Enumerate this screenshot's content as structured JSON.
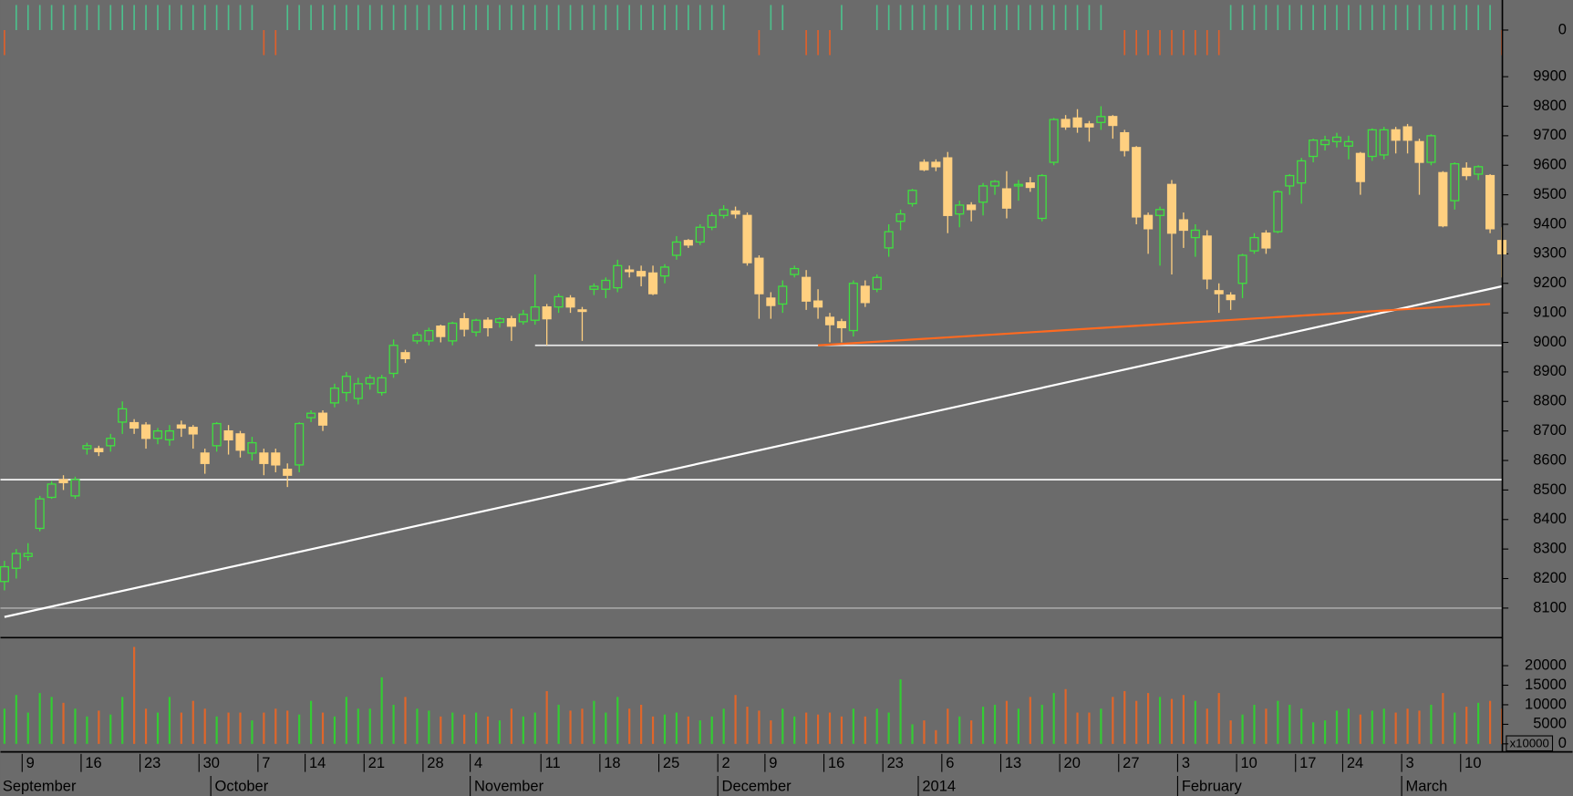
{
  "chart_data": {
    "type": "candlestick",
    "up_color": "#3fe03f",
    "down_color": "#ffd080",
    "background": "#6b6b6b",
    "ylim": [
      8000,
      9990
    ],
    "yticks": [
      8100,
      8200,
      8300,
      8400,
      8500,
      8600,
      8700,
      8800,
      8900,
      9000,
      9100,
      9200,
      9300,
      9400,
      9500,
      9600,
      9700,
      9800,
      9900
    ],
    "categories": [
      null,
      null,
      "9",
      null,
      null,
      null,
      null,
      "16",
      null,
      null,
      null,
      null,
      "23",
      null,
      null,
      null,
      null,
      "30",
      null,
      null,
      null,
      null,
      "7",
      null,
      null,
      null,
      "14",
      null,
      null,
      null,
      null,
      "21",
      null,
      null,
      null,
      null,
      "28",
      null,
      null,
      null,
      "4",
      null,
      null,
      null,
      null,
      null,
      "11",
      null,
      null,
      null,
      null,
      "18",
      null,
      null,
      null,
      null,
      "25",
      null,
      null,
      null,
      null,
      "2",
      null,
      null,
      null,
      "9",
      null,
      null,
      null,
      null,
      "16",
      null,
      null,
      null,
      null,
      "23",
      null,
      null,
      null,
      null,
      "6",
      null,
      null,
      null,
      null,
      "13",
      null,
      null,
      null,
      null,
      "20",
      null,
      null,
      null,
      null,
      "27",
      null,
      null,
      null,
      null,
      "3",
      null,
      null,
      null,
      null,
      "10",
      null,
      null,
      null,
      null,
      "17",
      null,
      null,
      null,
      "24",
      null,
      null,
      null,
      null,
      "3",
      null,
      null,
      null,
      null,
      "10",
      null,
      null,
      null
    ],
    "months": [
      "September",
      null,
      null,
      null,
      null,
      null,
      null,
      null,
      null,
      null,
      null,
      null,
      null,
      null,
      null,
      null,
      null,
      null,
      "October",
      null,
      null,
      null,
      null,
      null,
      null,
      null,
      null,
      null,
      null,
      null,
      null,
      null,
      null,
      null,
      null,
      null,
      null,
      null,
      null,
      null,
      "November",
      null,
      null,
      null,
      null,
      null,
      null,
      null,
      null,
      null,
      null,
      null,
      null,
      null,
      null,
      null,
      null,
      null,
      null,
      null,
      null,
      "December",
      null,
      null,
      null,
      null,
      null,
      null,
      null,
      null,
      null,
      null,
      null,
      null,
      null,
      null,
      null,
      null,
      "2014",
      null,
      null,
      null,
      null,
      null,
      null,
      null,
      null,
      null,
      null,
      null,
      null,
      null,
      null,
      null,
      null,
      null,
      null,
      null,
      null,
      null,
      "February",
      null,
      null,
      null,
      null,
      null,
      null,
      null,
      null,
      null,
      null,
      null,
      null,
      null,
      null,
      null,
      null,
      null,
      null,
      "March",
      null,
      null,
      null,
      null,
      null,
      null,
      null,
      null
    ],
    "ohlc": [
      [
        8190,
        8260,
        8160,
        8240
      ],
      [
        8235,
        8300,
        8200,
        8285
      ],
      [
        8275,
        8320,
        8260,
        8285
      ],
      [
        8370,
        8480,
        8360,
        8470
      ],
      [
        8475,
        8530,
        8470,
        8520
      ],
      [
        8535,
        8550,
        8500,
        8525
      ],
      [
        8480,
        8545,
        8470,
        8535
      ],
      [
        8640,
        8660,
        8620,
        8650
      ],
      [
        8640,
        8650,
        8615,
        8630
      ],
      [
        8650,
        8690,
        8630,
        8675
      ],
      [
        8730,
        8800,
        8690,
        8775
      ],
      [
        8728,
        8740,
        8690,
        8710
      ],
      [
        8720,
        8730,
        8640,
        8675
      ],
      [
        8675,
        8710,
        8655,
        8700
      ],
      [
        8670,
        8720,
        8650,
        8700
      ],
      [
        8720,
        8735,
        8680,
        8710
      ],
      [
        8712,
        8720,
        8640,
        8690
      ],
      [
        8625,
        8640,
        8555,
        8590
      ],
      [
        8650,
        8730,
        8630,
        8725
      ],
      [
        8700,
        8720,
        8620,
        8670
      ],
      [
        8690,
        8700,
        8610,
        8635
      ],
      [
        8625,
        8680,
        8600,
        8660
      ],
      [
        8625,
        8640,
        8550,
        8590
      ],
      [
        8625,
        8640,
        8560,
        8585
      ],
      [
        8570,
        8590,
        8510,
        8550
      ],
      [
        8585,
        8730,
        8560,
        8725
      ],
      [
        8745,
        8770,
        8730,
        8760
      ],
      [
        8760,
        8770,
        8700,
        8720
      ],
      [
        8795,
        8860,
        8780,
        8845
      ],
      [
        8830,
        8900,
        8800,
        8885
      ],
      [
        8810,
        8880,
        8790,
        8860
      ],
      [
        8860,
        8890,
        8840,
        8880
      ],
      [
        8830,
        8890,
        8820,
        8880
      ],
      [
        8895,
        9010,
        8880,
        8990
      ],
      [
        8965,
        8975,
        8930,
        8945
      ],
      [
        9005,
        9035,
        8995,
        9025
      ],
      [
        9005,
        9050,
        8990,
        9040
      ],
      [
        9055,
        9060,
        9000,
        9020
      ],
      [
        9005,
        9070,
        8990,
        9065
      ],
      [
        9080,
        9100,
        9020,
        9045
      ],
      [
        9035,
        9080,
        9020,
        9075
      ],
      [
        9075,
        9085,
        9020,
        9050
      ],
      [
        9068,
        9085,
        9050,
        9080
      ],
      [
        9080,
        9090,
        9005,
        9055
      ],
      [
        9070,
        9110,
        9060,
        9095
      ],
      [
        9075,
        9230,
        9060,
        9120
      ],
      [
        9120,
        9130,
        8990,
        9080
      ],
      [
        9120,
        9165,
        9100,
        9155
      ],
      [
        9150,
        9160,
        9100,
        9120
      ],
      [
        9110,
        9120,
        9005,
        9105
      ],
      [
        9180,
        9200,
        9160,
        9190
      ],
      [
        9180,
        9220,
        9150,
        9210
      ],
      [
        9185,
        9280,
        9170,
        9260
      ],
      [
        9245,
        9260,
        9220,
        9240
      ],
      [
        9240,
        9260,
        9190,
        9225
      ],
      [
        9235,
        9260,
        9160,
        9165
      ],
      [
        9225,
        9265,
        9200,
        9255
      ],
      [
        9295,
        9360,
        9280,
        9340
      ],
      [
        9345,
        9350,
        9320,
        9330
      ],
      [
        9340,
        9400,
        9330,
        9390
      ],
      [
        9390,
        9440,
        9380,
        9430
      ],
      [
        9430,
        9465,
        9420,
        9450
      ],
      [
        9445,
        9460,
        9420,
        9435
      ],
      [
        9430,
        9440,
        9260,
        9270
      ],
      [
        9285,
        9295,
        9080,
        9165
      ],
      [
        9150,
        9170,
        9080,
        9125
      ],
      [
        9130,
        9210,
        9100,
        9190
      ],
      [
        9230,
        9260,
        9220,
        9250
      ],
      [
        9220,
        9245,
        9110,
        9140
      ],
      [
        9140,
        9180,
        9080,
        9120
      ],
      [
        9085,
        9100,
        9000,
        9060
      ],
      [
        9070,
        9080,
        9000,
        9050
      ],
      [
        9040,
        9210,
        9020,
        9200
      ],
      [
        9190,
        9210,
        9120,
        9135
      ],
      [
        9180,
        9230,
        9170,
        9220
      ],
      [
        9320,
        9400,
        9290,
        9375
      ],
      [
        9410,
        9450,
        9380,
        9435
      ],
      [
        9470,
        9520,
        9460,
        9515
      ],
      [
        9610,
        9620,
        9580,
        9585
      ],
      [
        9610,
        9620,
        9580,
        9595
      ],
      [
        9625,
        9645,
        9370,
        9430
      ],
      [
        9435,
        9480,
        9390,
        9465
      ],
      [
        9465,
        9475,
        9410,
        9450
      ],
      [
        9475,
        9540,
        9430,
        9530
      ],
      [
        9530,
        9550,
        9500,
        9545
      ],
      [
        9520,
        9580,
        9420,
        9455
      ],
      [
        9530,
        9550,
        9480,
        9535
      ],
      [
        9540,
        9560,
        9510,
        9525
      ],
      [
        9420,
        9570,
        9410,
        9565
      ],
      [
        9610,
        9760,
        9600,
        9755
      ],
      [
        9755,
        9770,
        9720,
        9730
      ],
      [
        9760,
        9790,
        9710,
        9730
      ],
      [
        9740,
        9750,
        9680,
        9730
      ],
      [
        9745,
        9800,
        9720,
        9765
      ],
      [
        9765,
        9770,
        9690,
        9735
      ],
      [
        9710,
        9720,
        9630,
        9650
      ],
      [
        9660,
        9665,
        9400,
        9425
      ],
      [
        9430,
        9440,
        9300,
        9385
      ],
      [
        9430,
        9460,
        9260,
        9450
      ],
      [
        9535,
        9550,
        9230,
        9370
      ],
      [
        9415,
        9440,
        9320,
        9380
      ],
      [
        9355,
        9400,
        9290,
        9380
      ],
      [
        9360,
        9380,
        9180,
        9215
      ],
      [
        9175,
        9200,
        9100,
        9165
      ],
      [
        9160,
        9170,
        9110,
        9145
      ],
      [
        9200,
        9300,
        9150,
        9295
      ],
      [
        9310,
        9370,
        9300,
        9355
      ],
      [
        9370,
        9380,
        9300,
        9320
      ],
      [
        9375,
        9515,
        9370,
        9510
      ],
      [
        9530,
        9570,
        9500,
        9565
      ],
      [
        9540,
        9625,
        9470,
        9615
      ],
      [
        9630,
        9690,
        9610,
        9685
      ],
      [
        9670,
        9700,
        9650,
        9685
      ],
      [
        9680,
        9710,
        9660,
        9695
      ],
      [
        9665,
        9700,
        9620,
        9680
      ],
      [
        9640,
        9645,
        9500,
        9545
      ],
      [
        9630,
        9725,
        9615,
        9720
      ],
      [
        9635,
        9730,
        9620,
        9720
      ],
      [
        9720,
        9730,
        9640,
        9685
      ],
      [
        9730,
        9740,
        9640,
        9685
      ],
      [
        9680,
        9690,
        9500,
        9610
      ],
      [
        9610,
        9705,
        9600,
        9700
      ],
      [
        9575,
        9580,
        9390,
        9395
      ],
      [
        9480,
        9610,
        9450,
        9605
      ],
      [
        9590,
        9610,
        9550,
        9565
      ],
      [
        9570,
        9600,
        9550,
        9595
      ],
      [
        9565,
        9570,
        9370,
        9385
      ],
      [
        9345,
        9390,
        9220,
        9300
      ]
    ],
    "hlines": [
      {
        "value": 8535,
        "color": "#ffffff"
      },
      {
        "value": 8990,
        "from": 45,
        "color": "#e8e8e8"
      },
      {
        "value": 8100,
        "color": "#a8a8a8"
      }
    ],
    "lines": [
      {
        "from": [
          0,
          8070
        ],
        "to": [
          127,
          9190
        ],
        "color": "#ffffff"
      },
      {
        "from": [
          69,
          8990
        ],
        "to": [
          126,
          9130
        ],
        "color": "#ff6a20"
      }
    ],
    "volume": {
      "ylim": [
        0,
        25000
      ],
      "yticks": [
        0,
        5000,
        10000,
        15000,
        20000
      ],
      "unit_label": "x10000",
      "up_color": "#33cc33",
      "down_color": "#e0662a",
      "values": [
        9000,
        12500,
        8000,
        13000,
        12000,
        10500,
        9000,
        7000,
        8500,
        7500,
        12000,
        24800,
        9000,
        8000,
        12000,
        8000,
        11000,
        9000,
        7000,
        8000,
        8000,
        6000,
        8000,
        9000,
        8500,
        7500,
        11000,
        8000,
        7000,
        12000,
        9000,
        9000,
        17000,
        10000,
        12000,
        9000,
        8500,
        7000,
        8000,
        7500,
        8000,
        7000,
        6000,
        9000,
        7000,
        8000,
        13500,
        10000,
        8500,
        9000,
        11000,
        8000,
        12000,
        9000,
        10000,
        7000,
        7500,
        8000,
        7000,
        6000,
        7000,
        9000,
        12500,
        9500,
        8500,
        6000,
        9000,
        7000,
        8000,
        7500,
        8000,
        7000,
        9000,
        7000,
        9000,
        8000,
        16500,
        5000,
        6000,
        3500,
        9000,
        7000,
        6000,
        9500,
        10000,
        11000,
        9000,
        12000,
        10000,
        13000,
        14000,
        8000,
        8000,
        9000,
        12000,
        13500,
        11000,
        13000,
        12000,
        11500,
        12500,
        11000,
        9000,
        13000,
        6000,
        7500,
        10000,
        9000,
        11000,
        10000,
        9000,
        5500,
        6000,
        8500,
        9000,
        7500,
        8500,
        9000,
        8000,
        9000,
        8500,
        10000,
        13000,
        8000,
        9500,
        10500,
        11000,
        9000
      ]
    },
    "indicator": {
      "ylim": [
        -1,
        1
      ],
      "yticks": [
        0
      ],
      "up_color": "#4cc08c",
      "down_color": "#e0602a",
      "values": [
        -1,
        1,
        1,
        1,
        1,
        1,
        1,
        1,
        1,
        1,
        1,
        1,
        1,
        1,
        1,
        1,
        1,
        1,
        1,
        1,
        1,
        1,
        -1,
        -1,
        1,
        1,
        1,
        1,
        1,
        1,
        1,
        1,
        1,
        1,
        1,
        1,
        1,
        1,
        1,
        1,
        1,
        1,
        1,
        1,
        1,
        1,
        1,
        1,
        1,
        1,
        1,
        1,
        1,
        1,
        1,
        1,
        1,
        1,
        1,
        1,
        1,
        1,
        0,
        0,
        -1,
        1,
        1,
        0,
        -1,
        -1,
        -1,
        1,
        0,
        0,
        1,
        1,
        1,
        1,
        1,
        1,
        1,
        1,
        1,
        1,
        1,
        1,
        1,
        1,
        1,
        1,
        1,
        1,
        1,
        1,
        0,
        -1,
        -1,
        -1,
        -1,
        -1,
        -1,
        -1,
        -1,
        -1,
        1,
        1,
        1,
        1,
        1,
        1,
        1,
        1,
        1,
        1,
        1,
        1,
        1,
        1,
        1,
        1,
        1,
        1,
        1,
        1,
        1,
        1,
        1,
        -1
      ]
    }
  }
}
